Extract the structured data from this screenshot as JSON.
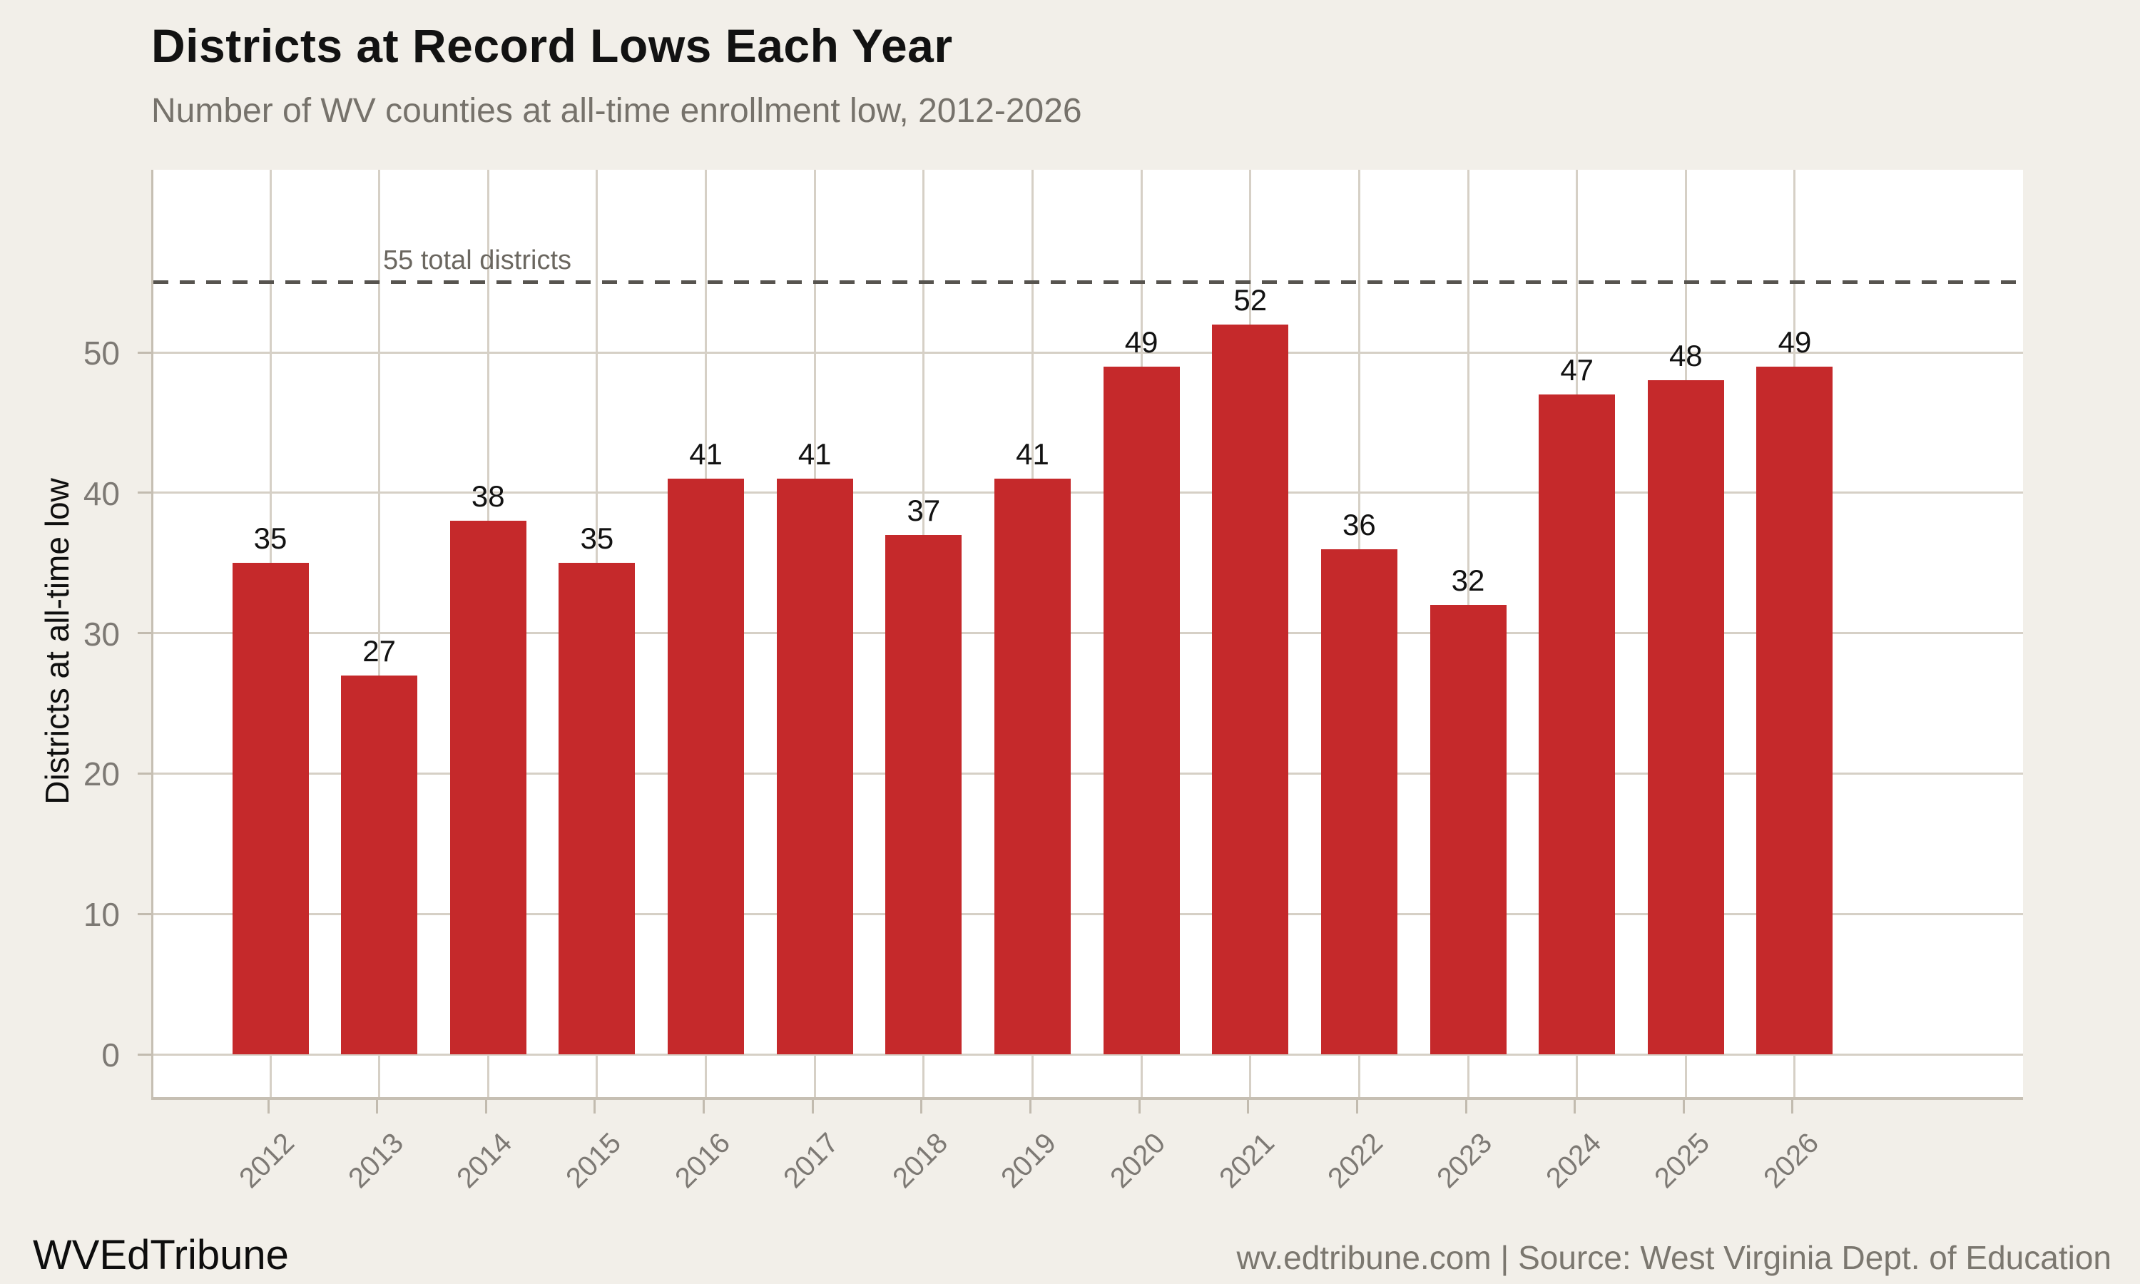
{
  "chart_data": {
    "type": "bar",
    "title": "Districts at Record Lows Each Year",
    "subtitle": "Number of WV counties at all-time enrollment low, 2012-2026",
    "categories": [
      "2012",
      "2013",
      "2014",
      "2015",
      "2016",
      "2017",
      "2018",
      "2019",
      "2020",
      "2021",
      "2022",
      "2023",
      "2024",
      "2025",
      "2026"
    ],
    "values": [
      35,
      27,
      38,
      35,
      41,
      41,
      37,
      41,
      49,
      52,
      36,
      32,
      47,
      48,
      49
    ],
    "xlabel": "",
    "ylabel": "Districts at all-time low",
    "yticks": [
      0,
      10,
      20,
      30,
      40,
      50
    ],
    "ylim": [
      -3,
      63
    ],
    "grid": true,
    "legend": "none",
    "bar_color": "#c5292b",
    "reference_line": {
      "value": 55,
      "label": "55 total districts"
    }
  },
  "footer": {
    "brand": "WVEdTribune",
    "source": "wv.edtribune.com | Source: West Virginia Dept. of Education"
  }
}
